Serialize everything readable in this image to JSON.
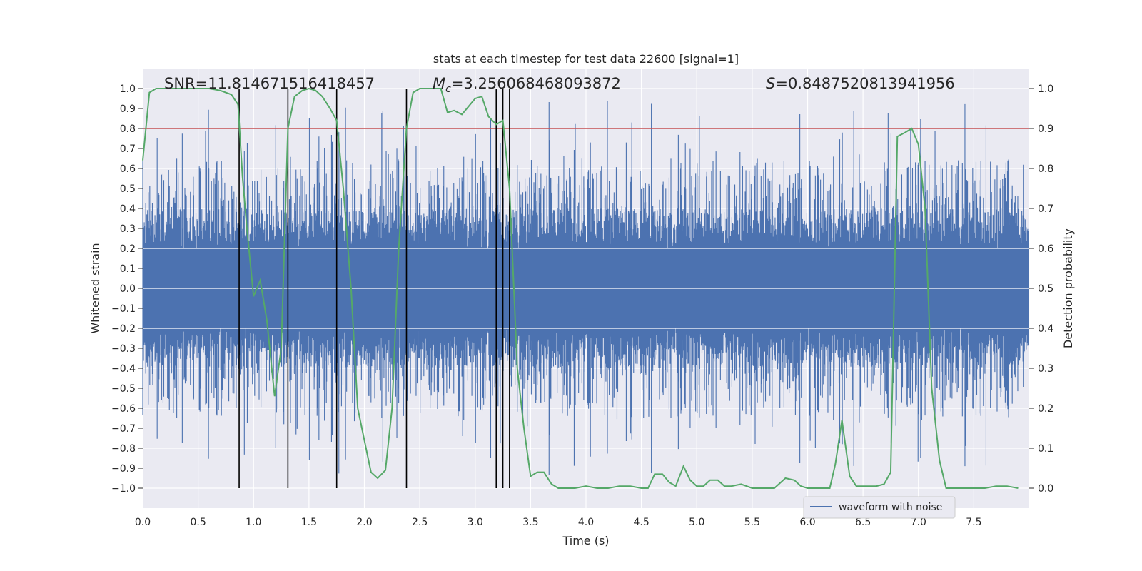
{
  "chart_data": {
    "type": "line",
    "title": "stats at each timestep for test data 22600 [signal=1]",
    "xlabel": "Time (s)",
    "ylabel": "Whitened strain",
    "y2label": "Detection probability",
    "xlim": [
      0.0,
      8.0
    ],
    "ylim": [
      -1.1,
      1.1
    ],
    "y2lim": [
      -0.05,
      1.05
    ],
    "xticks": [
      "0.0",
      "0.5",
      "1.0",
      "1.5",
      "2.0",
      "2.5",
      "3.0",
      "3.5",
      "4.0",
      "4.5",
      "5.0",
      "5.5",
      "6.0",
      "6.5",
      "7.0",
      "7.5"
    ],
    "yticks": [
      "1.0",
      "0.9",
      "0.8",
      "0.7",
      "0.6",
      "0.5",
      "0.4",
      "0.3",
      "0.2",
      "0.1",
      "0.0",
      "−0.1",
      "−0.2",
      "−0.3",
      "−0.4",
      "−0.5",
      "−0.6",
      "−0.7",
      "−0.8",
      "−0.9",
      "−1.0"
    ],
    "y2ticks": [
      "1.0",
      "0.9",
      "0.8",
      "0.7",
      "0.6",
      "0.5",
      "0.4",
      "0.3",
      "0.2",
      "0.1",
      "0.0"
    ],
    "grid": true,
    "legend": {
      "position": "bottom-right",
      "entries": [
        "waveform with noise"
      ]
    },
    "annotations": {
      "snr_label": "SNR=11.814671516418457",
      "mc_symbol": "M",
      "mc_sub": "c",
      "mc_value": "=3.256068468093872",
      "s_symbol": "S",
      "s_value": "=0.8487520813941956"
    },
    "threshold": {
      "y2": 0.9,
      "color": "#c44e52"
    },
    "vlines_x": [
      0.87,
      1.31,
      1.75,
      2.38,
      3.19,
      3.25,
      3.31
    ],
    "waveform": {
      "name": "waveform with noise",
      "color": "#4c72b0",
      "duration_s": 8.0,
      "typical_amplitude": 0.4,
      "max_amplitude": 1.0
    },
    "probability_series": {
      "color": "#55a868",
      "x": [
        0.0,
        0.06,
        0.12,
        0.2,
        0.3,
        0.4,
        0.5,
        0.6,
        0.7,
        0.8,
        0.86,
        0.9,
        0.94,
        1.0,
        1.06,
        1.12,
        1.19,
        1.25,
        1.31,
        1.37,
        1.44,
        1.5,
        1.56,
        1.62,
        1.69,
        1.75,
        1.81,
        1.88,
        1.94,
        2.0,
        2.06,
        2.12,
        2.19,
        2.25,
        2.31,
        2.38,
        2.44,
        2.5,
        2.56,
        2.62,
        2.69,
        2.75,
        2.81,
        2.88,
        2.94,
        3.0,
        3.06,
        3.12,
        3.19,
        3.25,
        3.31,
        3.38,
        3.44,
        3.5,
        3.56,
        3.62,
        3.69,
        3.75,
        3.81,
        3.9,
        4.0,
        4.1,
        4.2,
        4.3,
        4.4,
        4.5,
        4.56,
        4.62,
        4.69,
        4.75,
        4.81,
        4.88,
        4.94,
        5.0,
        5.06,
        5.12,
        5.19,
        5.25,
        5.31,
        5.4,
        5.5,
        5.56,
        5.62,
        5.7,
        5.8,
        5.88,
        5.94,
        6.0,
        6.1,
        6.2,
        6.25,
        6.31,
        6.38,
        6.44,
        6.5,
        6.56,
        6.62,
        6.69,
        6.75,
        6.81,
        6.88,
        6.94,
        7.0,
        7.06,
        7.12,
        7.19,
        7.25,
        7.31,
        7.38,
        7.44,
        7.5,
        7.6,
        7.7,
        7.8,
        7.9
      ],
      "y": [
        0.82,
        0.99,
        1.0,
        1.0,
        1.0,
        1.0,
        1.0,
        1.0,
        0.995,
        0.985,
        0.96,
        0.78,
        0.65,
        0.48,
        0.52,
        0.42,
        0.23,
        0.35,
        0.9,
        0.98,
        0.995,
        1.0,
        0.995,
        0.98,
        0.95,
        0.92,
        0.75,
        0.5,
        0.2,
        0.12,
        0.04,
        0.025,
        0.045,
        0.2,
        0.6,
        0.9,
        0.99,
        1.0,
        1.0,
        1.0,
        1.0,
        0.94,
        0.945,
        0.935,
        0.955,
        0.975,
        0.98,
        0.93,
        0.91,
        0.92,
        0.75,
        0.3,
        0.15,
        0.03,
        0.04,
        0.04,
        0.01,
        0.0,
        0.0,
        0.0,
        0.005,
        0.0,
        0.0,
        0.005,
        0.005,
        0.0,
        0.0,
        0.035,
        0.035,
        0.015,
        0.005,
        0.055,
        0.02,
        0.005,
        0.005,
        0.02,
        0.02,
        0.005,
        0.005,
        0.01,
        0.0,
        0.0,
        0.0,
        0.0,
        0.025,
        0.02,
        0.005,
        0.0,
        0.0,
        0.0,
        0.06,
        0.17,
        0.03,
        0.005,
        0.005,
        0.005,
        0.005,
        0.01,
        0.04,
        0.88,
        0.89,
        0.9,
        0.86,
        0.7,
        0.25,
        0.07,
        0.0,
        0.0,
        0.0,
        0.0,
        0.0,
        0.0,
        0.005,
        0.005,
        0.0
      ]
    }
  }
}
